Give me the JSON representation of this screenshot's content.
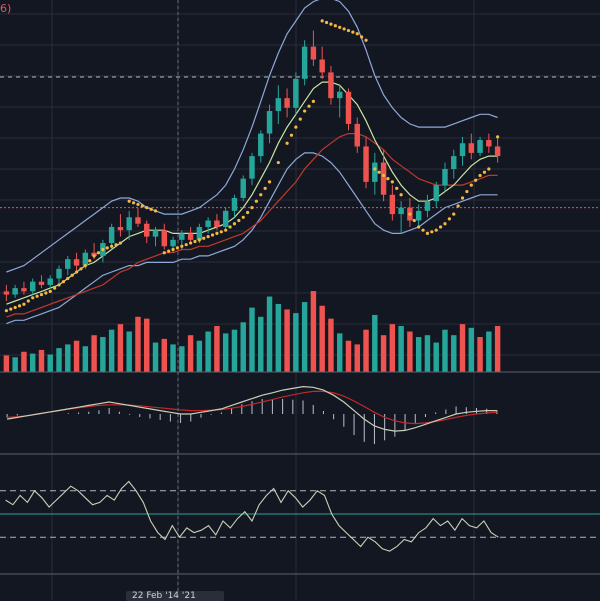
{
  "title_fragment": "6)",
  "colors": {
    "background": "#131722",
    "grid": "#2a2e39",
    "up": "#26a69a",
    "down": "#ef5350",
    "bollinger": "#8ea8d8",
    "ma_fast": "#c8e6a0",
    "ma_slow": "#c0392b",
    "sar": "#f5b942",
    "price_line": "#e25461",
    "dashed": "#b2b5be",
    "oscillator": "#c9cfb8"
  },
  "chart_data": [
    {
      "type": "candlestick",
      "panel": "price",
      "ylim": [
        0,
        100
      ],
      "price_line": 38,
      "candles": [
        {
          "o": 12,
          "h": 14,
          "l": 9,
          "c": 11
        },
        {
          "o": 11,
          "h": 14,
          "l": 10,
          "c": 13
        },
        {
          "o": 13,
          "h": 15,
          "l": 11,
          "c": 12
        },
        {
          "o": 12,
          "h": 16,
          "l": 11,
          "c": 15
        },
        {
          "o": 15,
          "h": 17,
          "l": 13,
          "c": 14
        },
        {
          "o": 14,
          "h": 17,
          "l": 13,
          "c": 16
        },
        {
          "o": 16,
          "h": 20,
          "l": 14,
          "c": 19
        },
        {
          "o": 19,
          "h": 23,
          "l": 17,
          "c": 22
        },
        {
          "o": 22,
          "h": 24,
          "l": 18,
          "c": 20
        },
        {
          "o": 20,
          "h": 25,
          "l": 19,
          "c": 24
        },
        {
          "o": 24,
          "h": 27,
          "l": 22,
          "c": 23
        },
        {
          "o": 23,
          "h": 28,
          "l": 21,
          "c": 27
        },
        {
          "o": 27,
          "h": 33,
          "l": 25,
          "c": 32
        },
        {
          "o": 32,
          "h": 36,
          "l": 29,
          "c": 31
        },
        {
          "o": 31,
          "h": 37,
          "l": 28,
          "c": 35
        },
        {
          "o": 35,
          "h": 38,
          "l": 32,
          "c": 33
        },
        {
          "o": 33,
          "h": 34,
          "l": 27,
          "c": 29
        },
        {
          "o": 29,
          "h": 32,
          "l": 26,
          "c": 31
        },
        {
          "o": 31,
          "h": 33,
          "l": 25,
          "c": 26
        },
        {
          "o": 26,
          "h": 29,
          "l": 24,
          "c": 28
        },
        {
          "o": 28,
          "h": 31,
          "l": 25,
          "c": 30
        },
        {
          "o": 30,
          "h": 32,
          "l": 27,
          "c": 28
        },
        {
          "o": 28,
          "h": 33,
          "l": 27,
          "c": 32
        },
        {
          "o": 32,
          "h": 35,
          "l": 30,
          "c": 34
        },
        {
          "o": 34,
          "h": 36,
          "l": 31,
          "c": 32
        },
        {
          "o": 32,
          "h": 38,
          "l": 31,
          "c": 37
        },
        {
          "o": 37,
          "h": 42,
          "l": 35,
          "c": 41
        },
        {
          "o": 41,
          "h": 48,
          "l": 40,
          "c": 47
        },
        {
          "o": 47,
          "h": 55,
          "l": 45,
          "c": 54
        },
        {
          "o": 54,
          "h": 62,
          "l": 52,
          "c": 61
        },
        {
          "o": 61,
          "h": 70,
          "l": 58,
          "c": 68
        },
        {
          "o": 68,
          "h": 76,
          "l": 64,
          "c": 72
        },
        {
          "o": 72,
          "h": 75,
          "l": 66,
          "c": 69
        },
        {
          "o": 69,
          "h": 80,
          "l": 67,
          "c": 78
        },
        {
          "o": 78,
          "h": 90,
          "l": 76,
          "c": 88
        },
        {
          "o": 88,
          "h": 93,
          "l": 82,
          "c": 84
        },
        {
          "o": 84,
          "h": 88,
          "l": 78,
          "c": 80
        },
        {
          "o": 80,
          "h": 82,
          "l": 70,
          "c": 72
        },
        {
          "o": 72,
          "h": 76,
          "l": 66,
          "c": 74
        },
        {
          "o": 74,
          "h": 75,
          "l": 62,
          "c": 64
        },
        {
          "o": 64,
          "h": 66,
          "l": 55,
          "c": 57
        },
        {
          "o": 57,
          "h": 60,
          "l": 44,
          "c": 46
        },
        {
          "o": 46,
          "h": 55,
          "l": 42,
          "c": 52
        },
        {
          "o": 52,
          "h": 56,
          "l": 40,
          "c": 42
        },
        {
          "o": 42,
          "h": 45,
          "l": 34,
          "c": 36
        },
        {
          "o": 36,
          "h": 40,
          "l": 30,
          "c": 38
        },
        {
          "o": 38,
          "h": 41,
          "l": 32,
          "c": 34
        },
        {
          "o": 34,
          "h": 39,
          "l": 32,
          "c": 37
        },
        {
          "o": 37,
          "h": 42,
          "l": 35,
          "c": 40
        },
        {
          "o": 40,
          "h": 46,
          "l": 38,
          "c": 45
        },
        {
          "o": 45,
          "h": 52,
          "l": 43,
          "c": 50
        },
        {
          "o": 50,
          "h": 56,
          "l": 47,
          "c": 54
        },
        {
          "o": 54,
          "h": 60,
          "l": 51,
          "c": 58
        },
        {
          "o": 58,
          "h": 61,
          "l": 53,
          "c": 55
        },
        {
          "o": 55,
          "h": 60,
          "l": 54,
          "c": 59
        },
        {
          "o": 59,
          "h": 61,
          "l": 55,
          "c": 57
        },
        {
          "o": 57,
          "h": 60,
          "l": 52,
          "c": 54
        }
      ],
      "bollinger_upper": [
        18,
        19,
        20,
        22,
        24,
        26,
        28,
        30,
        32,
        34,
        36,
        38,
        40,
        41,
        41,
        40,
        38,
        37,
        36,
        36,
        36,
        37,
        38,
        40,
        42,
        45,
        50,
        56,
        63,
        71,
        79,
        86,
        92,
        96,
        100,
        102,
        103,
        103,
        102,
        99,
        94,
        87,
        79,
        73,
        69,
        66,
        64,
        63,
        63,
        63,
        63,
        64,
        65,
        66,
        67,
        67,
        66
      ],
      "bollinger_lower": [
        2,
        3,
        3,
        4,
        5,
        6,
        7,
        9,
        11,
        13,
        15,
        17,
        18,
        19,
        20,
        20,
        21,
        21,
        21,
        21,
        22,
        22,
        23,
        23,
        24,
        25,
        26,
        28,
        31,
        35,
        40,
        45,
        50,
        53,
        55,
        55,
        54,
        52,
        49,
        45,
        41,
        37,
        33,
        31,
        30,
        30,
        31,
        32,
        34,
        36,
        38,
        39,
        40,
        41,
        42,
        42,
        42
      ],
      "ma_fast": [
        8,
        9,
        10,
        11,
        12,
        13,
        14,
        16,
        18,
        20,
        21,
        23,
        25,
        27,
        29,
        30,
        31,
        31,
        31,
        30,
        30,
        30,
        30,
        31,
        32,
        33,
        35,
        38,
        42,
        47,
        52,
        58,
        63,
        67,
        71,
        75,
        77,
        77,
        76,
        73,
        70,
        65,
        59,
        54,
        49,
        45,
        42,
        40,
        40,
        41,
        43,
        45,
        48,
        51,
        53,
        54,
        54
      ],
      "ma_slow": [
        4,
        5,
        5,
        6,
        7,
        8,
        9,
        10,
        11,
        12,
        13,
        14,
        16,
        18,
        19,
        21,
        22,
        23,
        24,
        24,
        25,
        25,
        26,
        26,
        27,
        28,
        29,
        30,
        32,
        34,
        37,
        40,
        43,
        46,
        50,
        53,
        56,
        58,
        60,
        61,
        61,
        60,
        58,
        56,
        53,
        51,
        49,
        47,
        46,
        45,
        45,
        45,
        45,
        46,
        47,
        48,
        48
      ],
      "sar": [
        6,
        7,
        8,
        10,
        11,
        12,
        14,
        16,
        18,
        20,
        23,
        25,
        26,
        27,
        40,
        39,
        38,
        37,
        24,
        25,
        26,
        27,
        28,
        29,
        30,
        31,
        33,
        35,
        38,
        42,
        46,
        52,
        58,
        63,
        68,
        71,
        96,
        95,
        94,
        93,
        92,
        90,
        50,
        48,
        46,
        42,
        36,
        32,
        30,
        31,
        33,
        36,
        41,
        45,
        48,
        50,
        60
      ]
    },
    {
      "type": "bar",
      "panel": "volume",
      "values": [
        18,
        16,
        22,
        20,
        24,
        19,
        26,
        30,
        34,
        28,
        40,
        38,
        46,
        52,
        44,
        60,
        58,
        32,
        36,
        30,
        28,
        40,
        34,
        44,
        50,
        42,
        46,
        54,
        70,
        60,
        82,
        74,
        68,
        64,
        76,
        88,
        72,
        58,
        42,
        34,
        30,
        46,
        62,
        40,
        52,
        50,
        44,
        38,
        40,
        32,
        46,
        40,
        52,
        48,
        38,
        44,
        50
      ],
      "direction": [
        "down",
        "up",
        "down",
        "up",
        "down",
        "up",
        "up",
        "up",
        "down",
        "up",
        "down",
        "up",
        "up",
        "down",
        "up",
        "down",
        "down",
        "up",
        "down",
        "up",
        "up",
        "down",
        "up",
        "up",
        "down",
        "up",
        "up",
        "up",
        "up",
        "up",
        "up",
        "up",
        "down",
        "up",
        "up",
        "down",
        "down",
        "down",
        "up",
        "down",
        "down",
        "down",
        "up",
        "down",
        "down",
        "up",
        "down",
        "up",
        "up",
        "up",
        "up",
        "up",
        "down",
        "up",
        "down",
        "up",
        "down"
      ]
    },
    {
      "type": "line",
      "panel": "macd",
      "ylim": [
        -1,
        1
      ],
      "macd": [
        -0.15,
        -0.1,
        -0.05,
        0,
        0.05,
        0.1,
        0.15,
        0.2,
        0.25,
        0.3,
        0.35,
        0.3,
        0.25,
        0.2,
        0.15,
        0.1,
        0.05,
        0,
        0,
        0.05,
        0.1,
        0.15,
        0.25,
        0.35,
        0.45,
        0.55,
        0.62,
        0.7,
        0.75,
        0.8,
        0.78,
        0.7,
        0.55,
        0.35,
        0.1,
        -0.15,
        -0.35,
        -0.45,
        -0.5,
        -0.48,
        -0.4,
        -0.3,
        -0.2,
        -0.1,
        0,
        0.05,
        0.08,
        0.1,
        0.1
      ],
      "signal": [
        -0.1,
        -0.08,
        -0.05,
        0,
        0.05,
        0.1,
        0.14,
        0.18,
        0.22,
        0.25,
        0.27,
        0.27,
        0.26,
        0.24,
        0.21,
        0.18,
        0.15,
        0.12,
        0.1,
        0.1,
        0.11,
        0.13,
        0.17,
        0.22,
        0.28,
        0.35,
        0.42,
        0.5,
        0.56,
        0.62,
        0.66,
        0.66,
        0.62,
        0.52,
        0.38,
        0.22,
        0.05,
        -0.1,
        -0.2,
        -0.26,
        -0.28,
        -0.26,
        -0.22,
        -0.16,
        -0.1,
        -0.04,
        0,
        0.03,
        0.05
      ]
    },
    {
      "type": "line",
      "panel": "oscillator",
      "ylim": [
        0,
        100
      ],
      "upper_level": 70,
      "lower_level": 30,
      "values": [
        62,
        58,
        66,
        60,
        70,
        64,
        56,
        62,
        68,
        74,
        70,
        64,
        58,
        60,
        66,
        62,
        72,
        78,
        70,
        60,
        44,
        34,
        28,
        40,
        30,
        38,
        34,
        36,
        40,
        32,
        44,
        38,
        46,
        52,
        44,
        58,
        66,
        72,
        60,
        70,
        64,
        56,
        62,
        70,
        66,
        50,
        40,
        34,
        28,
        22,
        30,
        26,
        20,
        18,
        22,
        28,
        26,
        34,
        38,
        46,
        40,
        44,
        36,
        46,
        40,
        38,
        44,
        34,
        30
      ]
    }
  ],
  "bottom_label": "22 Feb '14  '21"
}
